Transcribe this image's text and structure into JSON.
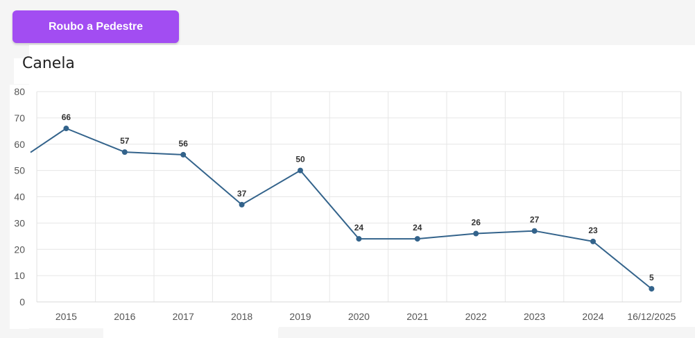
{
  "header": {
    "button_label": "Roubo a Pedestre",
    "accent_color": "#a24df2"
  },
  "title": "Canela",
  "chart_data": {
    "type": "line",
    "title": "Canela",
    "xlabel": "",
    "ylabel": "",
    "categories": [
      "",
      "2015",
      "2016",
      "2017",
      "2018",
      "2019",
      "2020",
      "2021",
      "2022",
      "2023",
      "2024",
      "16/12/2025"
    ],
    "series": [
      {
        "values": [
          51,
          66,
          57,
          56,
          37,
          50,
          24,
          24,
          26,
          27,
          23,
          5
        ],
        "color": "#33638b"
      }
    ],
    "data_labels": [
      "",
      "66",
      "57",
      "56",
      "37",
      "50",
      "24",
      "24",
      "26",
      "27",
      "23",
      "5"
    ],
    "y_ticks": [
      "0",
      "10",
      "20",
      "30",
      "40",
      "50",
      "60",
      "70",
      "80"
    ],
    "ylim": [
      0,
      80
    ],
    "grid": true,
    "legend": "none"
  }
}
